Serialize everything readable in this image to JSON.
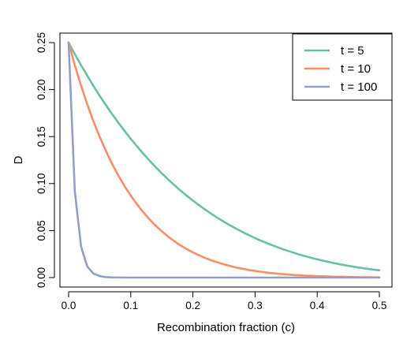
{
  "chart_data": {
    "type": "line",
    "title": "",
    "xlabel": "Recombination fraction (c)",
    "ylabel": "D",
    "xlim": [
      0,
      0.5
    ],
    "ylim": [
      0,
      0.25
    ],
    "xticks": [
      0.0,
      0.1,
      0.2,
      0.3,
      0.4,
      0.5
    ],
    "xtick_labels": [
      "0.0",
      "0.1",
      "0.2",
      "0.3",
      "0.4",
      "0.5"
    ],
    "yticks": [
      0.0,
      0.05,
      0.1,
      0.15,
      0.2,
      0.25
    ],
    "ytick_labels": [
      "0.00",
      "0.05",
      "0.10",
      "0.15",
      "0.20",
      "0.25"
    ],
    "grid": false,
    "legend_position": "top-right",
    "x": [
      0.0,
      0.01,
      0.02,
      0.03,
      0.04,
      0.05,
      0.06,
      0.07,
      0.08,
      0.09,
      0.1,
      0.11,
      0.12,
      0.13,
      0.14,
      0.15,
      0.16,
      0.17,
      0.18,
      0.19,
      0.2,
      0.21,
      0.22,
      0.23,
      0.24,
      0.25,
      0.26,
      0.27,
      0.28,
      0.29,
      0.3,
      0.31,
      0.32,
      0.33,
      0.34,
      0.35,
      0.36,
      0.37,
      0.38,
      0.39,
      0.4,
      0.41,
      0.42,
      0.43,
      0.44,
      0.45,
      0.46,
      0.47,
      0.48,
      0.49,
      0.5
    ],
    "series": [
      {
        "name": "t = 5",
        "color": "#66C2A5",
        "values": [
          0.25,
          0.2377,
          0.226,
          0.2147,
          0.2038,
          0.1934,
          0.1835,
          0.1739,
          0.1648,
          0.156,
          0.1476,
          0.1396,
          0.1319,
          0.1246,
          0.1176,
          0.1109,
          0.1045,
          0.0984,
          0.0926,
          0.0871,
          0.0819,
          0.0769,
          0.0722,
          0.0677,
          0.0634,
          0.0593,
          0.0555,
          0.0518,
          0.0484,
          0.0451,
          0.042,
          0.0391,
          0.0364,
          0.0338,
          0.0313,
          0.029,
          0.0269,
          0.0248,
          0.0229,
          0.0211,
          0.0194,
          0.0179,
          0.0164,
          0.015,
          0.0137,
          0.0125,
          0.0114,
          0.0104,
          0.0094,
          0.0085,
          0.0078
        ]
      },
      {
        "name": "t = 10",
        "color": "#FC8D62",
        "values": [
          0.25,
          0.2261,
          0.2042,
          0.1843,
          0.1662,
          0.1497,
          0.1347,
          0.121,
          0.1086,
          0.0974,
          0.0872,
          0.078,
          0.0696,
          0.0621,
          0.0553,
          0.0492,
          0.0437,
          0.0387,
          0.0343,
          0.0303,
          0.0268,
          0.0237,
          0.0208,
          0.0183,
          0.0161,
          0.0141,
          0.0123,
          0.0107,
          0.0094,
          0.0081,
          0.0071,
          0.0061,
          0.0053,
          0.0046,
          0.0039,
          0.0034,
          0.0029,
          0.0025,
          0.0021,
          0.0018,
          0.0015,
          0.0013,
          0.0011,
          0.0009,
          0.0008,
          0.0006,
          0.0005,
          0.0004,
          0.0004,
          0.0003,
          0.0002
        ]
      },
      {
        "name": "t = 100",
        "color": "#8DA0CB",
        "values": [
          0.25,
          0.0915,
          0.0331,
          0.0118,
          0.0042,
          0.0015,
          0.0005,
          0.0002,
          0.0001,
          0.0,
          0.0,
          0.0,
          0.0,
          0.0,
          0.0,
          0.0,
          0.0,
          0.0,
          0.0,
          0.0,
          0.0,
          0.0,
          0.0,
          0.0,
          0.0,
          0.0,
          0.0,
          0.0,
          0.0,
          0.0,
          0.0,
          0.0,
          0.0,
          0.0,
          0.0,
          0.0,
          0.0,
          0.0,
          0.0,
          0.0,
          0.0,
          0.0,
          0.0,
          0.0,
          0.0,
          0.0,
          0.0,
          0.0,
          0.0,
          0.0,
          0.0
        ]
      }
    ]
  }
}
